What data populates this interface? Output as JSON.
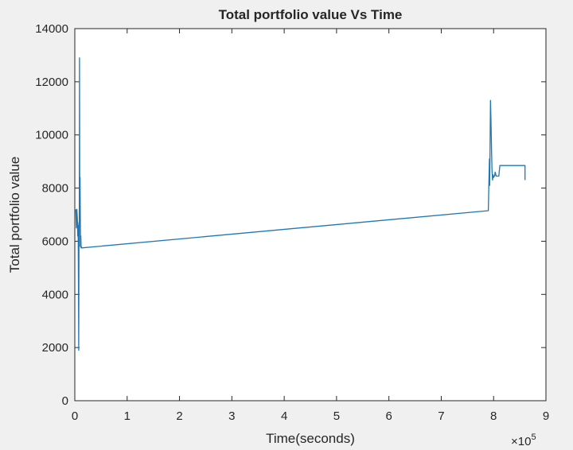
{
  "figure": {
    "background": "#f0f0f0",
    "axes_background": "#ffffff",
    "axes_color": "#262626",
    "line_color": "#1f77b4"
  },
  "chart_data": {
    "type": "line",
    "title": "Total portfolio value Vs Time",
    "xlabel": "Time(seconds)",
    "ylabel": "Total portfolio value",
    "x_exponent_label": "×10",
    "x_exponent_power": "5",
    "xlim": [
      0,
      900000
    ],
    "ylim": [
      0,
      14000
    ],
    "xticks": [
      0,
      1,
      2,
      3,
      4,
      5,
      6,
      7,
      8,
      9
    ],
    "yticks": [
      0,
      2000,
      4000,
      6000,
      8000,
      10000,
      12000,
      14000
    ],
    "grid": false,
    "series": [
      {
        "x": [
          2000,
          3000,
          4000,
          5000,
          5500,
          6000,
          6500,
          7000,
          7500,
          8000,
          8500,
          9000,
          9500,
          10000,
          10500,
          11000,
          11500,
          12000,
          12500,
          13000,
          790000,
          791000,
          792000,
          792500,
          793000,
          794000,
          795000,
          796000,
          797000,
          798000,
          799000,
          800000,
          801000,
          802000,
          803000,
          805000,
          810000,
          812000,
          815000,
          830000,
          850000,
          860000,
          860000
        ],
        "y": [
          7200,
          6500,
          7200,
          6800,
          6200,
          6700,
          6000,
          4300,
          1900,
          6600,
          5800,
          12900,
          6700,
          8400,
          7000,
          5800,
          6200,
          5750,
          5800,
          5750,
          7150,
          8200,
          9100,
          8100,
          8900,
          11300,
          10600,
          9500,
          8700,
          8300,
          8500,
          8400,
          8450,
          8450,
          8600,
          8450,
          8450,
          8850,
          8850,
          8850,
          8850,
          8850,
          8300
        ]
      }
    ]
  }
}
